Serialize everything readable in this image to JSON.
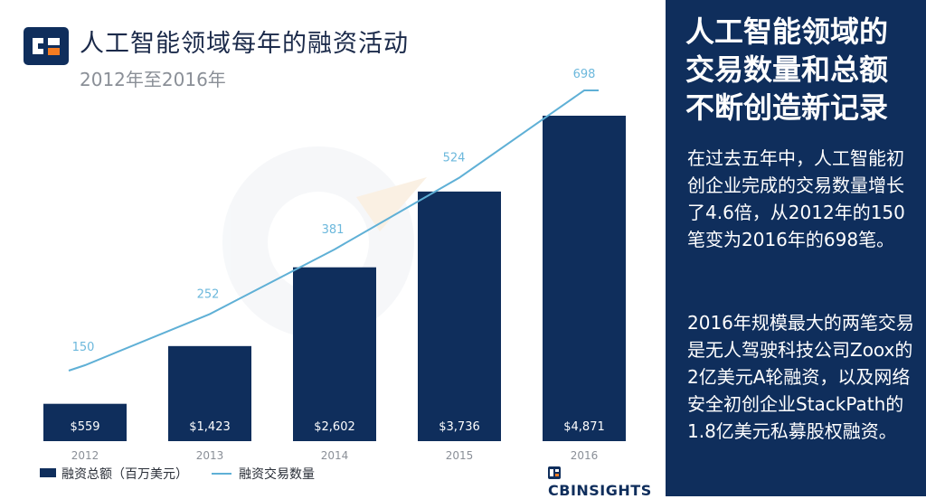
{
  "header": {
    "title": "人工智能领域每年的融资活动",
    "subtitle": "2012年至2016年"
  },
  "side_panel": {
    "heading": "人工智能领域的交易数量和总额不断创造新记录",
    "paragraph1": "在过去五年中，人工智能初创企业完成的交易数量增长了4.6倍，从2012年的150笔变为2016年的698笔。",
    "paragraph2": "2016年规模最大的两笔交易是无人驾驶科技公司Zoox的2亿美元A轮融资，以及网络安全初创企业StackPath的1.8亿美元私募股权融资。"
  },
  "legend": {
    "bar_label": "融资总额（百万美元）",
    "line_label": "融资交易数量"
  },
  "brand": {
    "name": "CBINSIGHTS"
  },
  "colors": {
    "bar": "#0f2e5c",
    "line": "#5fb0d6",
    "panel": "#0f2e5c"
  },
  "chart_data": {
    "type": "bar",
    "categories": [
      "2012",
      "2013",
      "2014",
      "2015",
      "2016"
    ],
    "series": [
      {
        "name": "融资总额（百万美元）",
        "type": "bar",
        "values": [
          559,
          1423,
          2602,
          3736,
          4871
        ],
        "labels": [
          "$559",
          "$1,423",
          "$2,602",
          "$3,736",
          "$4,871"
        ]
      },
      {
        "name": "融资交易数量",
        "type": "line",
        "values": [
          150,
          252,
          381,
          524,
          698
        ],
        "labels": [
          "150",
          "252",
          "381",
          "524",
          "698"
        ]
      }
    ],
    "title": "人工智能领域每年的融资活动",
    "subtitle": "2012年至2016年",
    "grid": false,
    "legend_position": "bottom-left"
  }
}
